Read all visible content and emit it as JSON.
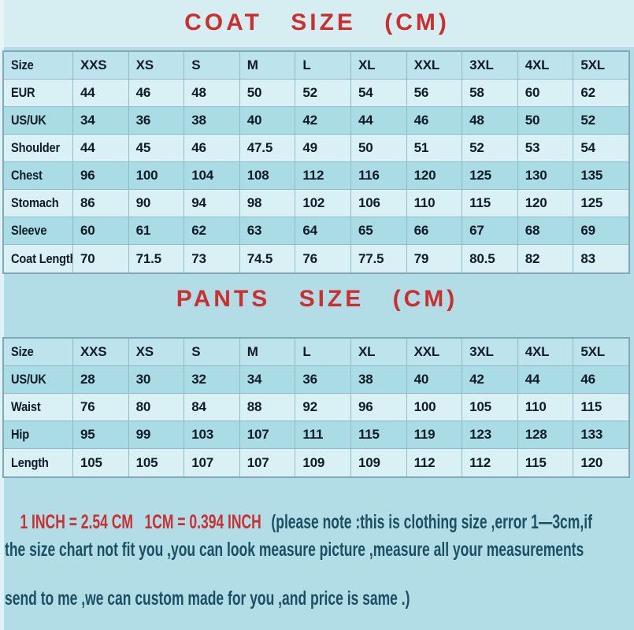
{
  "page": {
    "background_color": "#b3dde6",
    "accent_red": "#cb2f2f",
    "note_blue": "#1d4f63",
    "row_light": "#d9f0f5",
    "row_dark": "#aadce6"
  },
  "coat_title": "COAT SIZE (CM)",
  "pants_title": "PANTS SIZE (CM)",
  "chart_data": [
    {
      "id": "coat",
      "type": "table",
      "title": "COAT SIZE (CM)",
      "columns": [
        "Size",
        "XXS",
        "XS",
        "S",
        "M",
        "L",
        "XL",
        "XXL",
        "3XL",
        "4XL",
        "5XL"
      ],
      "rows": [
        {
          "label": "EUR",
          "values": [
            "44",
            "46",
            "48",
            "50",
            "52",
            "54",
            "56",
            "58",
            "60",
            "62"
          ]
        },
        {
          "label": "US/UK",
          "values": [
            "34",
            "36",
            "38",
            "40",
            "42",
            "44",
            "46",
            "48",
            "50",
            "52"
          ]
        },
        {
          "label": "Shoulder",
          "values": [
            "44",
            "45",
            "46",
            "47.5",
            "49",
            "50",
            "51",
            "52",
            "53",
            "54"
          ]
        },
        {
          "label": "Chest",
          "values": [
            "96",
            "100",
            "104",
            "108",
            "112",
            "116",
            "120",
            "125",
            "130",
            "135"
          ]
        },
        {
          "label": "Stomach",
          "values": [
            "86",
            "90",
            "94",
            "98",
            "102",
            "106",
            "110",
            "115",
            "120",
            "125"
          ]
        },
        {
          "label": "Sleeve",
          "values": [
            "60",
            "61",
            "62",
            "63",
            "64",
            "65",
            "66",
            "67",
            "68",
            "69"
          ]
        },
        {
          "label": "Coat Length",
          "values": [
            "70",
            "71.5",
            "73",
            "74.5",
            "76",
            "77.5",
            "79",
            "80.5",
            "82",
            "83"
          ]
        }
      ]
    },
    {
      "id": "pants",
      "type": "table",
      "title": "PANTS SIZE (CM)",
      "columns": [
        "Size",
        "XXS",
        "XS",
        "S",
        "M",
        "L",
        "XL",
        "XXL",
        "3XL",
        "4XL",
        "5XL"
      ],
      "rows": [
        {
          "label": "US/UK",
          "values": [
            "28",
            "30",
            "32",
            "34",
            "36",
            "38",
            "40",
            "42",
            "44",
            "46"
          ]
        },
        {
          "label": "Waist",
          "values": [
            "76",
            "80",
            "84",
            "88",
            "92",
            "96",
            "100",
            "105",
            "110",
            "115"
          ]
        },
        {
          "label": "Hip",
          "values": [
            "95",
            "99",
            "103",
            "107",
            "111",
            "115",
            "119",
            "123",
            "128",
            "133"
          ]
        },
        {
          "label": "Length",
          "values": [
            "105",
            "105",
            "107",
            "107",
            "109",
            "109",
            "112",
            "112",
            "115",
            "120"
          ]
        }
      ]
    }
  ],
  "notes": {
    "conversion": "1 INCH = 2.54 CM   1CM = 0.394 INCH",
    "line1_blue": "(please note :this is clothing size ,error 1—3cm,if",
    "line2": "the size chart not fit you ,you can look measure picture ,measure all your measurements",
    "line3": "send to me ,we can custom made for you ,and price is same .)"
  }
}
